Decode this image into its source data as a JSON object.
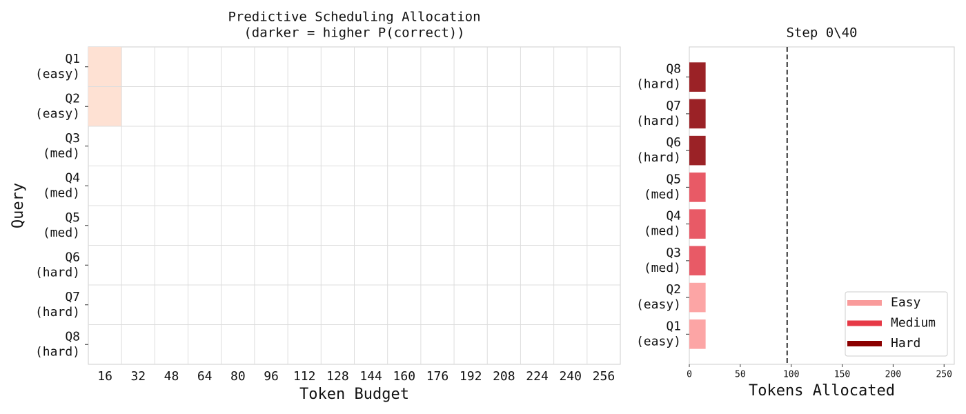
{
  "chart_data": [
    {
      "type": "heatmap",
      "title": "Predictive Scheduling Allocation",
      "subtitle": "(darker = higher P(correct))",
      "xlabel": "Token Budget",
      "ylabel": "Query",
      "x": [
        16,
        32,
        48,
        64,
        80,
        96,
        112,
        128,
        144,
        160,
        176,
        192,
        208,
        224,
        240,
        256
      ],
      "categories": [
        [
          "Q1",
          "(easy)"
        ],
        [
          "Q2",
          "(easy)"
        ],
        [
          "Q3",
          "(med)"
        ],
        [
          "Q4",
          "(med)"
        ],
        [
          "Q5",
          "(med)"
        ],
        [
          "Q6",
          "(hard)"
        ],
        [
          "Q7",
          "(hard)"
        ],
        [
          "Q8",
          "(hard)"
        ]
      ],
      "colormap": "Reds",
      "vmin": 0,
      "vmax": 1,
      "values": [
        [
          0.12,
          null,
          null,
          null,
          null,
          null,
          null,
          null,
          null,
          null,
          null,
          null,
          null,
          null,
          null,
          null
        ],
        [
          0.12,
          null,
          null,
          null,
          null,
          null,
          null,
          null,
          null,
          null,
          null,
          null,
          null,
          null,
          null,
          null
        ],
        [
          null,
          null,
          null,
          null,
          null,
          null,
          null,
          null,
          null,
          null,
          null,
          null,
          null,
          null,
          null,
          null
        ],
        [
          null,
          null,
          null,
          null,
          null,
          null,
          null,
          null,
          null,
          null,
          null,
          null,
          null,
          null,
          null,
          null
        ],
        [
          null,
          null,
          null,
          null,
          null,
          null,
          null,
          null,
          null,
          null,
          null,
          null,
          null,
          null,
          null,
          null
        ],
        [
          null,
          null,
          null,
          null,
          null,
          null,
          null,
          null,
          null,
          null,
          null,
          null,
          null,
          null,
          null,
          null
        ],
        [
          null,
          null,
          null,
          null,
          null,
          null,
          null,
          null,
          null,
          null,
          null,
          null,
          null,
          null,
          null,
          null
        ],
        [
          null,
          null,
          null,
          null,
          null,
          null,
          null,
          null,
          null,
          null,
          null,
          null,
          null,
          null,
          null,
          null
        ]
      ]
    },
    {
      "type": "barh",
      "title": "Step 0\\40",
      "xlabel": "Tokens Allocated",
      "categories": [
        [
          "Q1",
          "(easy)"
        ],
        [
          "Q2",
          "(easy)"
        ],
        [
          "Q3",
          "(med)"
        ],
        [
          "Q4",
          "(med)"
        ],
        [
          "Q5",
          "(med)"
        ],
        [
          "Q6",
          "(hard)"
        ],
        [
          "Q7",
          "(hard)"
        ],
        [
          "Q8",
          "(hard)"
        ]
      ],
      "values": [
        16,
        16,
        16,
        16,
        16,
        16,
        16,
        16
      ],
      "colors": [
        "#fca5a5",
        "#fca5a5",
        "#e85a66",
        "#e85a66",
        "#e85a66",
        "#9b2226",
        "#9b2226",
        "#9b2226"
      ],
      "xlim": [
        0,
        260
      ],
      "xticks": [
        0,
        50,
        100,
        150,
        200,
        250
      ],
      "vline": 96,
      "legend_loc": "lower right",
      "legend": [
        {
          "name": "Easy",
          "color": "#f99b9b"
        },
        {
          "name": "Medium",
          "color": "#e63946"
        },
        {
          "name": "Hard",
          "color": "#8b0000"
        }
      ]
    }
  ]
}
